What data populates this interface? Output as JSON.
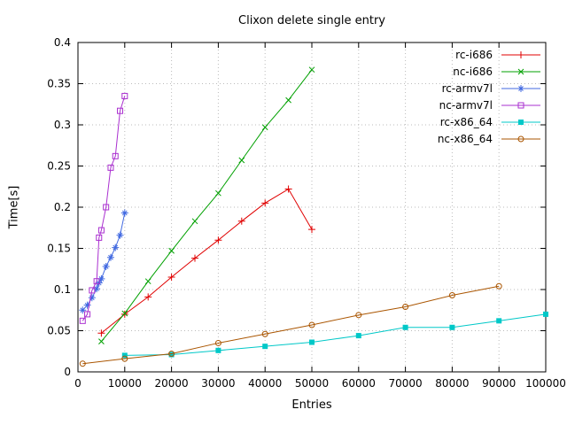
{
  "chart_data": {
    "type": "line",
    "title": "Clixon delete single entry",
    "xlabel": "Entries",
    "ylabel": "Time[s]",
    "xlim": [
      0,
      100000
    ],
    "ylim": [
      0,
      0.4
    ],
    "grid": true,
    "legend_position": "top-right-inside",
    "xticks": [
      0,
      10000,
      20000,
      30000,
      40000,
      50000,
      60000,
      70000,
      80000,
      90000,
      100000
    ],
    "xtick_labels": [
      "0",
      "10000",
      "20000",
      "30000",
      "40000",
      "50000",
      "60000",
      "70000",
      "80000",
      "90000",
      "100000"
    ],
    "yticks": [
      0,
      0.05,
      0.1,
      0.15,
      0.2,
      0.25,
      0.3,
      0.35,
      0.4
    ],
    "ytick_labels": [
      "0",
      "0.05",
      "0.1",
      "0.15",
      "0.2",
      "0.25",
      "0.3",
      "0.35",
      "0.4"
    ],
    "grid_color": "#bbbbbb",
    "border_color": "#000000",
    "series": [
      {
        "name": "rc-i686",
        "color": "#e00000",
        "marker": "plus",
        "x": [
          5000,
          10000,
          15000,
          20000,
          25000,
          30000,
          35000,
          40000,
          45000,
          50000
        ],
        "y": [
          0.047,
          0.07,
          0.091,
          0.115,
          0.138,
          0.16,
          0.183,
          0.205,
          0.222,
          0.173
        ]
      },
      {
        "name": "nc-i686",
        "color": "#00a000",
        "marker": "cross",
        "x": [
          5000,
          10000,
          15000,
          20000,
          25000,
          30000,
          35000,
          40000,
          45000,
          50000
        ],
        "y": [
          0.037,
          0.071,
          0.11,
          0.147,
          0.183,
          0.217,
          0.257,
          0.297,
          0.33,
          0.367
        ]
      },
      {
        "name": "rc-armv7l",
        "color": "#4169e1",
        "marker": "asterisk",
        "x": [
          1000,
          2000,
          3000,
          4000,
          4500,
          5000,
          6000,
          7000,
          8000,
          9000,
          10000
        ],
        "y": [
          0.075,
          0.081,
          0.09,
          0.101,
          0.108,
          0.113,
          0.128,
          0.139,
          0.151,
          0.166,
          0.193
        ]
      },
      {
        "name": "nc-armv7l",
        "color": "#aa30d0",
        "marker": "square-open",
        "x": [
          1000,
          2000,
          3000,
          4000,
          4500,
          5000,
          6000,
          7000,
          8000,
          9000,
          10000
        ],
        "y": [
          0.062,
          0.07,
          0.099,
          0.11,
          0.163,
          0.172,
          0.2,
          0.248,
          0.262,
          0.317,
          0.335
        ]
      },
      {
        "name": "rc-x86_64",
        "color": "#00c8c8",
        "marker": "square-filled",
        "x": [
          10000,
          20000,
          30000,
          40000,
          50000,
          60000,
          70000,
          80000,
          90000,
          100000
        ],
        "y": [
          0.02,
          0.021,
          0.026,
          0.031,
          0.036,
          0.044,
          0.054,
          0.054,
          0.062,
          0.07
        ]
      },
      {
        "name": "nc-x86_64",
        "color": "#aa5500",
        "marker": "circle-open",
        "x": [
          1000,
          10000,
          20000,
          30000,
          40000,
          50000,
          60000,
          70000,
          80000,
          90000
        ],
        "y": [
          0.01,
          0.016,
          0.022,
          0.035,
          0.046,
          0.057,
          0.069,
          0.079,
          0.093,
          0.104
        ]
      }
    ]
  }
}
